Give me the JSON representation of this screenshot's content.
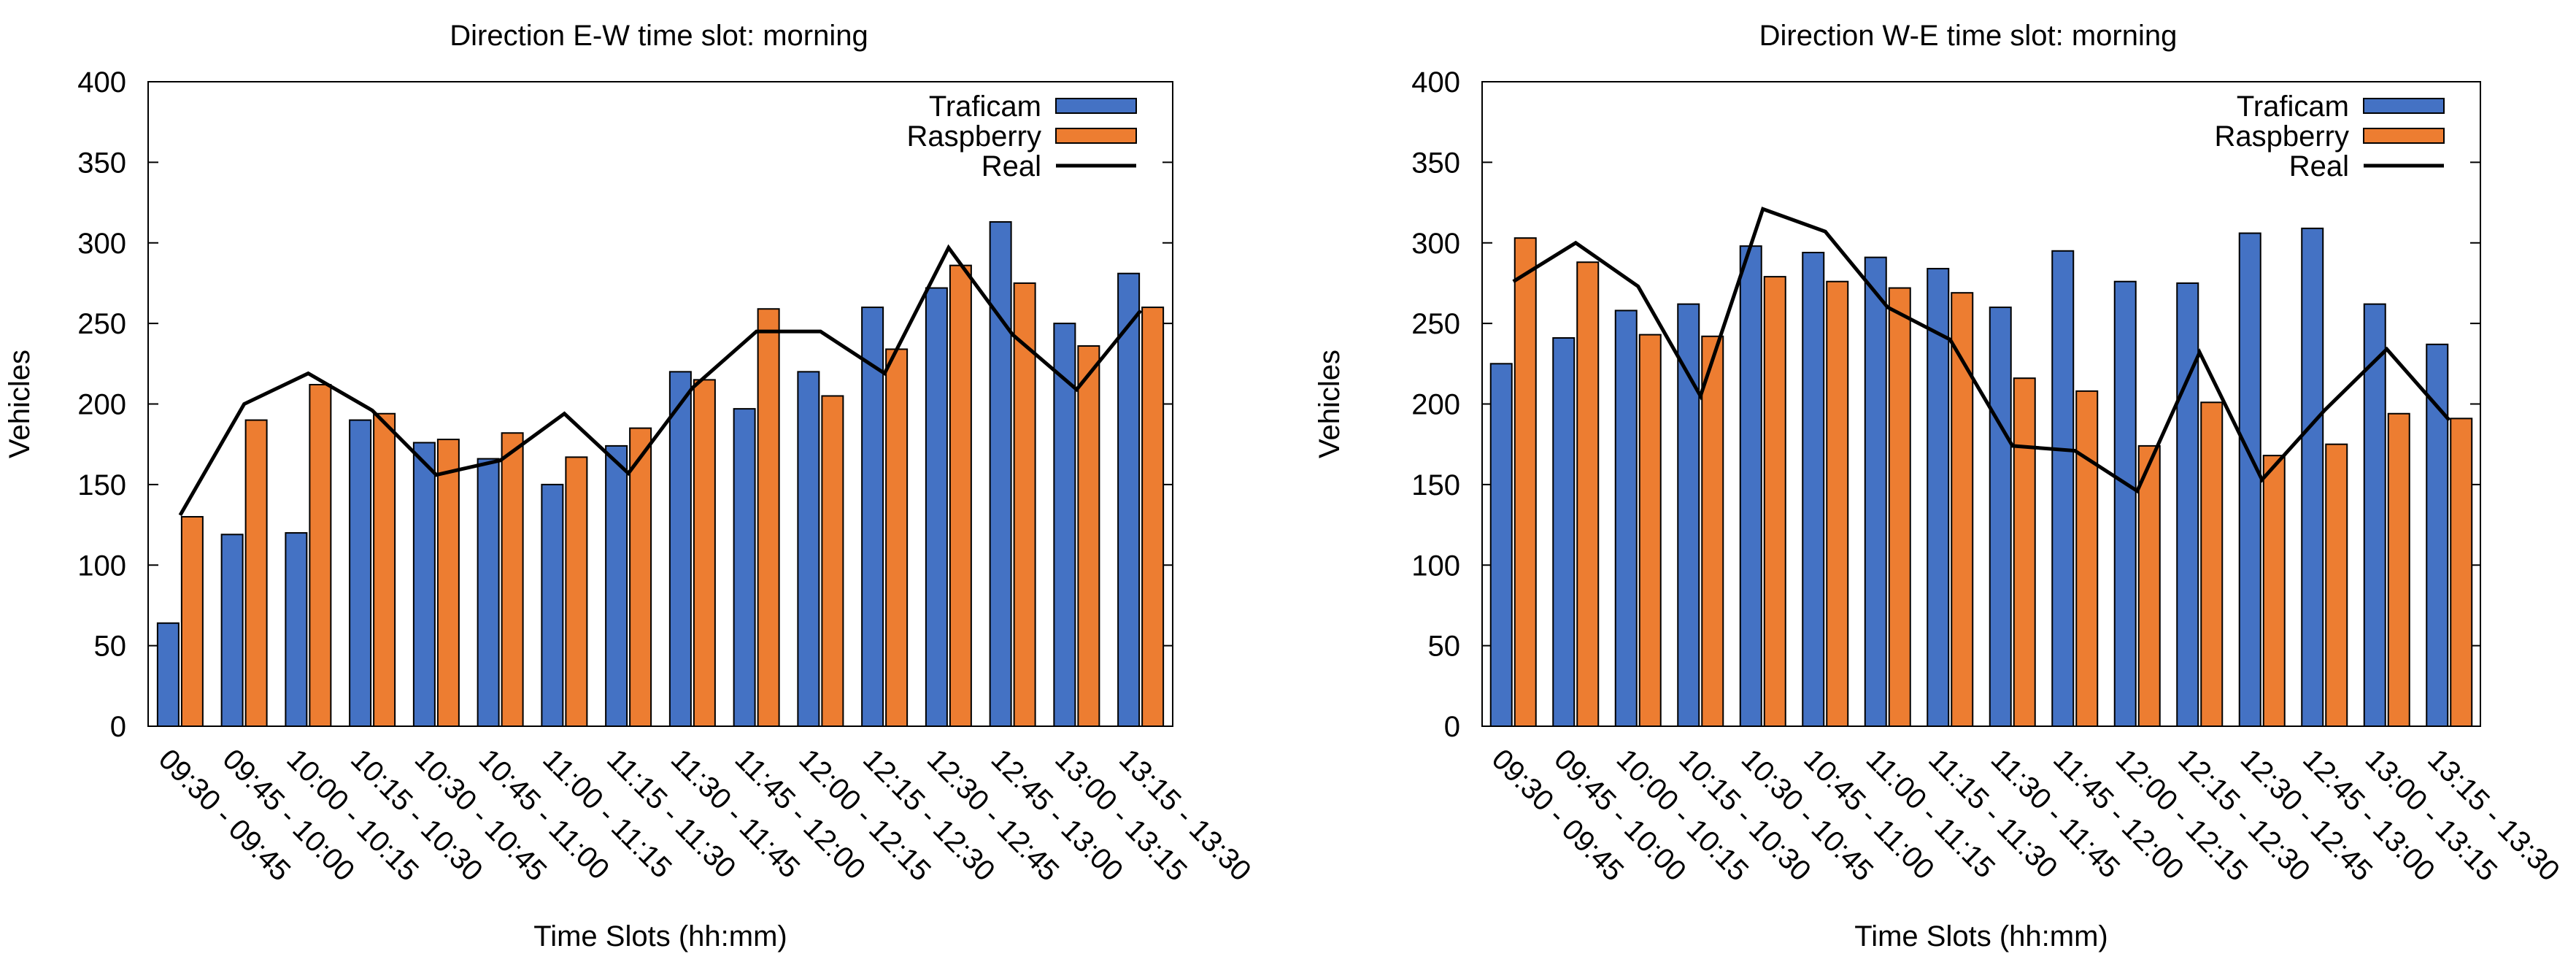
{
  "chart_data": [
    {
      "type": "bar",
      "title": "Direction E-W time slot: morning",
      "xlabel": "Time Slots (hh:mm)",
      "ylabel": "Vehicles",
      "ylim": [
        0,
        400
      ],
      "yticks": [
        0,
        50,
        100,
        150,
        200,
        250,
        300,
        350,
        400
      ],
      "grid": false,
      "legend_position": "top-right",
      "categories": [
        "09:30 - 09:45",
        "09:45 - 10:00",
        "10:00 - 10:15",
        "10:15 - 10:30",
        "10:30 - 10:45",
        "10:45 - 11:00",
        "11:00 - 11:15",
        "11:15 - 11:30",
        "11:30 - 11:45",
        "11:45 - 12:00",
        "12:00 - 12:15",
        "12:15 - 12:30",
        "12:30 - 12:45",
        "12:45 - 13:00",
        "13:00 - 13:15",
        "13:15 - 13:30"
      ],
      "series": [
        {
          "name": "Traficam",
          "kind": "bar",
          "color": "#4472C4",
          "values": [
            64,
            119,
            120,
            190,
            176,
            166,
            150,
            174,
            220,
            197,
            220,
            260,
            272,
            313,
            250,
            281
          ]
        },
        {
          "name": "Raspberry",
          "kind": "bar",
          "color": "#ED7D31",
          "values": [
            130,
            190,
            212,
            194,
            178,
            182,
            167,
            185,
            215,
            259,
            205,
            234,
            286,
            275,
            236,
            260
          ]
        },
        {
          "name": "Real",
          "kind": "line",
          "color": "#000000",
          "values": [
            131,
            200,
            219,
            196,
            156,
            165,
            194,
            157,
            210,
            245,
            245,
            219,
            297,
            243,
            209,
            258
          ]
        }
      ]
    },
    {
      "type": "bar",
      "title": "Direction W-E time slot: morning",
      "xlabel": "Time Slots (hh:mm)",
      "ylabel": "Vehicles",
      "ylim": [
        0,
        400
      ],
      "yticks": [
        0,
        50,
        100,
        150,
        200,
        250,
        300,
        350,
        400
      ],
      "grid": false,
      "legend_position": "top-right",
      "categories": [
        "09:30 - 09:45",
        "09:45 - 10:00",
        "10:00 - 10:15",
        "10:15 - 10:30",
        "10:30 - 10:45",
        "10:45 - 11:00",
        "11:00 - 11:15",
        "11:15 - 11:30",
        "11:30 - 11:45",
        "11:45 - 12:00",
        "12:00 - 12:15",
        "12:15 - 12:30",
        "12:30 - 12:45",
        "12:45 - 13:00",
        "13:00 - 13:15",
        "13:15 - 13:30"
      ],
      "series": [
        {
          "name": "Traficam",
          "kind": "bar",
          "color": "#4472C4",
          "values": [
            225,
            241,
            258,
            262,
            298,
            294,
            291,
            284,
            260,
            295,
            276,
            275,
            306,
            309,
            262,
            237
          ]
        },
        {
          "name": "Raspberry",
          "kind": "bar",
          "color": "#ED7D31",
          "values": [
            303,
            288,
            243,
            242,
            279,
            276,
            272,
            269,
            216,
            208,
            174,
            201,
            168,
            175,
            194,
            191
          ]
        },
        {
          "name": "Real",
          "kind": "line",
          "color": "#000000",
          "values": [
            276,
            300,
            273,
            205,
            321,
            307,
            260,
            240,
            174,
            171,
            146,
            232,
            153,
            196,
            234,
            190
          ]
        }
      ]
    }
  ]
}
